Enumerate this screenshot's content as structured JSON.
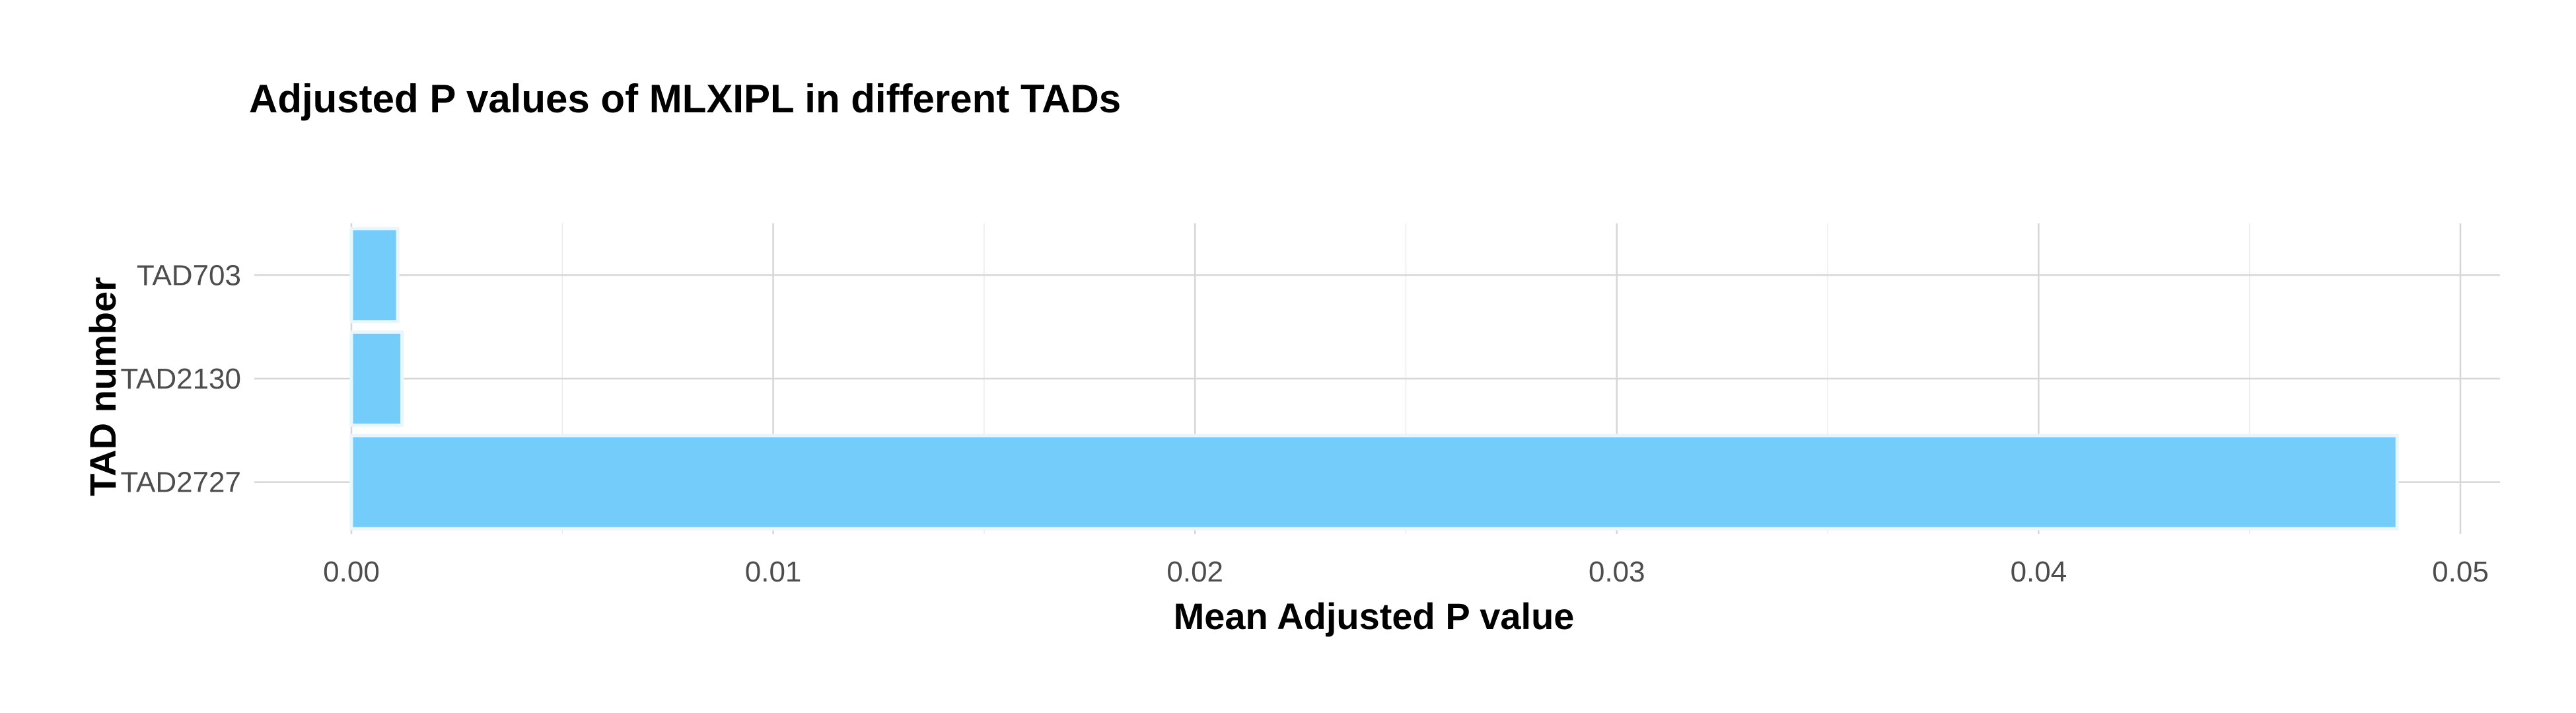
{
  "chart_data": {
    "type": "bar",
    "orientation": "horizontal",
    "title": "Adjusted P values of MLXIPL in different TADs",
    "xlabel": "Mean Adjusted P value",
    "ylabel": "TAD number",
    "categories": [
      "TAD2727",
      "TAD2130",
      "TAD703"
    ],
    "values": [
      0.0485,
      0.0012,
      0.0011
    ],
    "xlim": [
      0,
      0.0512
    ],
    "x_ticks": [
      "0.00",
      "0.01",
      "0.02",
      "0.03",
      "0.04",
      "0.05"
    ],
    "x_tick_values": [
      0,
      0.01,
      0.02,
      0.03,
      0.04,
      0.05
    ],
    "grid": true,
    "legend": "none",
    "colors": {
      "bar_fill": "#74CCFB",
      "bar_stroke": "#EAF6FE"
    }
  }
}
